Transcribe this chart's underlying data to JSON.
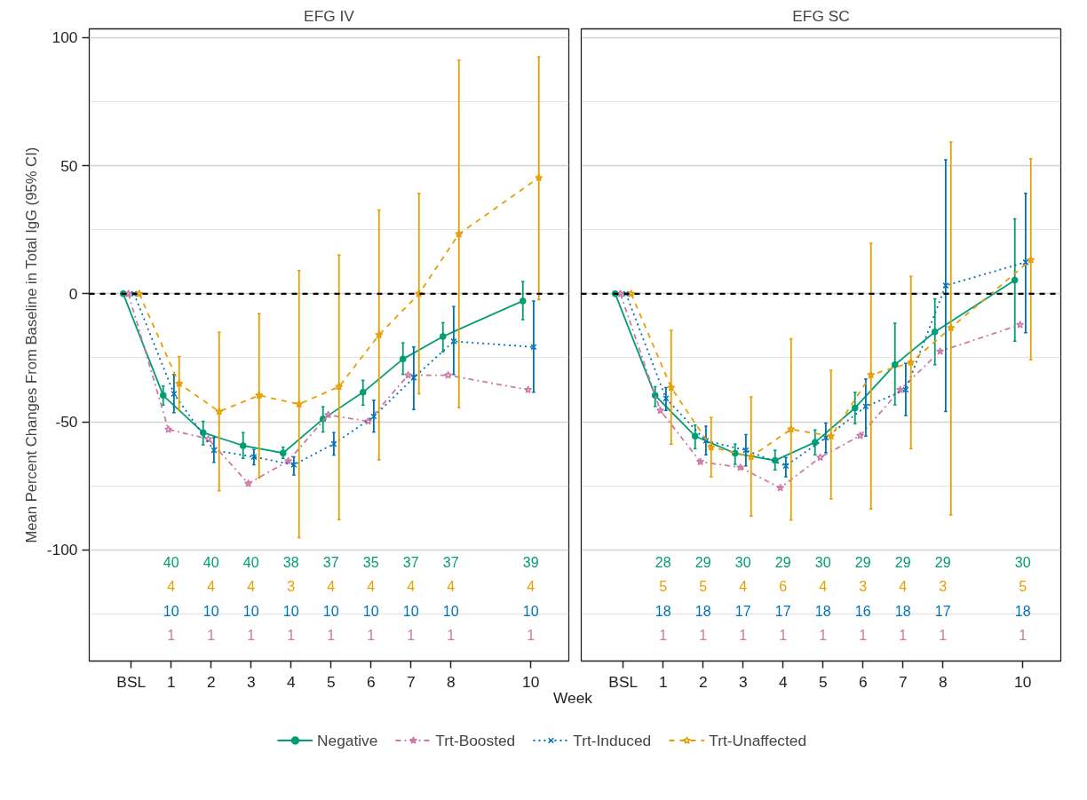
{
  "chart_data": [
    {
      "type": "line",
      "title": "EFG IV",
      "xlabel": "Week",
      "ylabel": "Mean Percent Changes From Baseline in Total IgG (95% CI)",
      "xlim": [
        -1.05,
        10.95
      ],
      "ylim": [
        -143.4,
        103.4
      ],
      "xticks": [
        {
          "value": 0,
          "label": "BSL"
        },
        1,
        2,
        3,
        4,
        5,
        6,
        7,
        8,
        10
      ],
      "yticks": [
        -100,
        -50,
        0,
        50,
        100
      ],
      "grid": "y",
      "legend": "bottom",
      "ref_lines": [
        {
          "axis": "y",
          "value": 0,
          "color": "#000000",
          "line_style": "dashed"
        }
      ],
      "series": [
        {
          "name": "Negative",
          "color": "#009e73",
          "marker": "circle",
          "line_style": "solid",
          "x": [
            -0.2,
            0.8,
            1.8,
            2.8,
            3.8,
            4.8,
            5.8,
            6.8,
            7.8,
            9.8
          ],
          "values": [
            0,
            -39.7,
            -54.2,
            -59.3,
            -62.2,
            -48.9,
            -38.5,
            -25.5,
            -16.7,
            -2.8
          ],
          "errors": [
            null,
            [
              -43.5,
              -36
            ],
            [
              -59,
              -49.8
            ],
            [
              -64.3,
              -54.2
            ],
            [
              -64.3,
              -59.9
            ],
            [
              -54,
              -44.1
            ],
            [
              -43.5,
              -33.8
            ],
            [
              -31.5,
              -19.2
            ],
            [
              -22.7,
              -11.3
            ],
            [
              -10.1,
              4.8
            ]
          ]
        },
        {
          "name": "Trt-Boosted",
          "color": "#cc79a7",
          "marker": "star",
          "line_style": "dashdot",
          "x": [
            -0.07,
            0.93,
            1.93,
            2.93,
            3.93,
            4.93,
            5.93,
            6.93,
            7.93,
            9.93
          ],
          "values": [
            0,
            -53,
            -56.7,
            -74.1,
            -65.3,
            -47.3,
            -49.8,
            -31.8,
            -31.8,
            -37.5
          ]
        },
        {
          "name": "Trt-Induced",
          "color": "#0072b2",
          "marker": "cross",
          "line_style": "dotted",
          "x": [
            0.07,
            1.07,
            2.07,
            3.07,
            4.07,
            5.07,
            6.07,
            7.07,
            8.07,
            10.07
          ],
          "values": [
            0,
            -39.1,
            -61.1,
            -63.7,
            -66.8,
            -58.6,
            -47.9,
            -32.8,
            -18.6,
            -20.8
          ],
          "errors": [
            null,
            [
              -46.4,
              -31.5
            ],
            [
              -65.8,
              -56.1
            ],
            [
              -66.8,
              -60.8
            ],
            [
              -70.8,
              -63.7
            ],
            [
              -63,
              -54.2
            ],
            [
              -54,
              -41.6
            ],
            [
              -45.2,
              -20.8
            ],
            [
              -31.5,
              -5
            ],
            [
              -38.5,
              -2.8
            ]
          ]
        },
        {
          "name": "Trt-Unaffected",
          "color": "#e69f00",
          "marker": "star",
          "line_style": "dashed",
          "x": [
            0.2,
            1.2,
            2.2,
            3.2,
            4.2,
            5.2,
            6.2,
            7.2,
            8.2,
            10.2
          ],
          "values": [
            0,
            -35.1,
            -46,
            -39.7,
            -43.1,
            -36.3,
            -16.1,
            0,
            23.3,
            45.3
          ],
          "errors": [
            null,
            [
              -45.4,
              -24.5
            ],
            [
              -76.9,
              -15.1
            ],
            [
              -71.9,
              -7.8
            ],
            [
              -95.2,
              9.1
            ],
            [
              -88.2,
              15.1
            ],
            [
              -64.9,
              32.7
            ],
            [
              -39.1,
              39.2
            ],
            [
              -44.4,
              91.2
            ],
            [
              -2.3,
              92.5
            ]
          ]
        }
      ],
      "annotations": [
        "40",
        "40",
        "40",
        "38",
        "37",
        "35",
        "37",
        "37",
        "39",
        "4",
        "4",
        "4",
        "3",
        "4",
        "4",
        "4",
        "4",
        "4",
        "10",
        "10",
        "10",
        "10",
        "10",
        "10",
        "10",
        "10",
        "10",
        "1",
        "1",
        "1",
        "1",
        "1",
        "1",
        "1",
        "1",
        "1"
      ]
    },
    {
      "type": "line",
      "title": "EFG SC",
      "xlim": [
        -1.05,
        10.95
      ],
      "ylim": [
        -143.4,
        103.4
      ],
      "xticks": [
        {
          "value": 0,
          "label": "BSL"
        },
        1,
        2,
        3,
        4,
        5,
        6,
        7,
        8,
        10
      ],
      "yticks": [
        -100,
        -50,
        0,
        50,
        100
      ],
      "grid": "y",
      "tick_labels": "x",
      "ref_lines": [
        {
          "axis": "y",
          "value": 0,
          "color": "#000000",
          "line_style": "dashed"
        }
      ],
      "series": [
        {
          "color": "#009e73",
          "marker": "circle",
          "line_style": "solid",
          "x": [
            -0.2,
            0.8,
            1.8,
            2.8,
            3.8,
            4.8,
            5.8,
            6.8,
            7.8,
            9.8
          ],
          "values": [
            0,
            -39.7,
            -55.6,
            -62.3,
            -65.1,
            -58,
            -44.6,
            -27.7,
            -14.9,
            5.3
          ],
          "errors": [
            null,
            [
              -44,
              -36.3
            ],
            [
              -60.5,
              -51.3
            ],
            [
              -66.6,
              -58.7
            ],
            [
              -68.8,
              -61.1
            ],
            [
              -62.9,
              -53.2
            ],
            [
              -50.7,
              -38.5
            ],
            [
              -43.4,
              -11.5
            ],
            [
              -27.7,
              -2
            ],
            [
              -18.5,
              29.2
            ]
          ]
        },
        {
          "color": "#cc79a7",
          "marker": "star",
          "line_style": "dashdot",
          "x": [
            -0.07,
            0.93,
            1.93,
            2.93,
            3.93,
            4.93,
            5.93,
            6.93,
            7.93,
            9.93
          ],
          "values": [
            0,
            -45.6,
            -65.6,
            -67.8,
            -75.8,
            -63.9,
            -55.4,
            -37.5,
            -22.5,
            -12.1
          ]
        },
        {
          "color": "#0072b2",
          "marker": "cross",
          "line_style": "dotted",
          "x": [
            0.07,
            1.07,
            2.07,
            3.07,
            4.07,
            5.07,
            6.07,
            7.07,
            8.07,
            10.07
          ],
          "values": [
            0,
            -40.9,
            -57.4,
            -61.1,
            -67.2,
            -56.2,
            -44,
            -37.5,
            3.2,
            12.3
          ],
          "errors": [
            null,
            [
              -45.6,
              -36.6
            ],
            [
              -62.9,
              -51.7
            ],
            [
              -67.2,
              -55
            ],
            [
              -71.5,
              -63.9
            ],
            [
              -62,
              -50.5
            ],
            [
              -55.6,
              -33.3
            ],
            [
              -47.6,
              -27.2
            ],
            [
              -46,
              52.3
            ],
            [
              -15.2,
              39.2
            ]
          ]
        },
        {
          "color": "#e69f00",
          "marker": "star",
          "line_style": "dashed",
          "x": [
            0.2,
            1.2,
            2.2,
            3.2,
            4.2,
            5.2,
            6.2,
            7.2,
            8.2,
            10.2
          ],
          "values": [
            0,
            -36.6,
            -59.9,
            -63.6,
            -52.9,
            -55.6,
            -31.7,
            -26.8,
            -13.3,
            13.2
          ],
          "errors": [
            null,
            [
              -58.7,
              -14.3
            ],
            [
              -71.5,
              -48.3
            ],
            [
              -86.8,
              -40.3
            ],
            [
              -88.4,
              -17.6
            ],
            [
              -80.1,
              -29.9
            ],
            [
              -84,
              19.7
            ],
            [
              -60.5,
              6.8
            ],
            [
              -86.4,
              59.2
            ],
            [
              -25.8,
              52.7
            ]
          ]
        }
      ],
      "annotations": [
        "28",
        "29",
        "30",
        "29",
        "30",
        "29",
        "29",
        "29",
        "30",
        "5",
        "5",
        "4",
        "6",
        "4",
        "3",
        "4",
        "3",
        "5",
        "18",
        "18",
        "17",
        "17",
        "18",
        "16",
        "18",
        "17",
        "18",
        "1",
        "1",
        "1",
        "1",
        "1",
        "1",
        "1",
        "1",
        "1"
      ]
    }
  ]
}
